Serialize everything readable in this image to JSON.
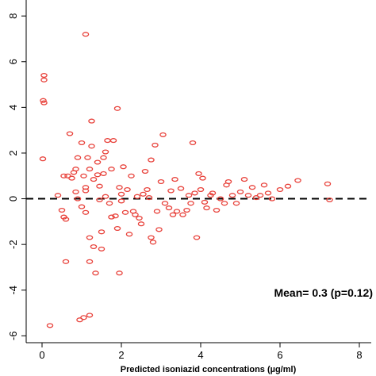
{
  "chart_data": {
    "type": "scatter",
    "title": "",
    "xlabel": "Predicted isoniazid concentrations (µg/ml)",
    "ylabel": "",
    "xlim": [
      -0.4,
      8.3
    ],
    "ylim": [
      -6.3,
      8.7
    ],
    "x_ticks": [
      0,
      2,
      4,
      6,
      8
    ],
    "x_tick_labels": [
      "0",
      "2",
      "4",
      "6",
      "8"
    ],
    "y_ticks": [
      -6,
      -4,
      -2,
      0,
      2,
      4,
      6,
      8
    ],
    "y_tick_labels": [
      "-6",
      "-4",
      "-2",
      "0",
      "2",
      "4",
      "6",
      "8"
    ],
    "grid": false,
    "reference_line": {
      "y": 0,
      "style": "dashed"
    },
    "annotation": "Mean= 0.3 (p=0.12)",
    "marker_color": "#e8413a",
    "series": [
      {
        "points": [
          [
            0.05,
            5.4
          ],
          [
            0.05,
            5.2
          ],
          [
            0.03,
            4.3
          ],
          [
            0.05,
            4.2
          ],
          [
            0.02,
            1.75
          ],
          [
            0.2,
            -5.55
          ],
          [
            0.4,
            0.15
          ],
          [
            0.5,
            -0.5
          ],
          [
            0.55,
            -0.8
          ],
          [
            0.6,
            -0.9
          ],
          [
            0.6,
            -2.75
          ],
          [
            0.55,
            1.0
          ],
          [
            0.65,
            1.0
          ],
          [
            0.7,
            2.85
          ],
          [
            0.75,
            0.9
          ],
          [
            0.8,
            1.15
          ],
          [
            0.85,
            1.3
          ],
          [
            0.85,
            0.3
          ],
          [
            0.9,
            1.8
          ],
          [
            0.9,
            0.0
          ],
          [
            0.95,
            -5.3
          ],
          [
            1.05,
            -5.2
          ],
          [
            1.0,
            -0.35
          ],
          [
            1.0,
            2.45
          ],
          [
            1.05,
            1.0
          ],
          [
            1.1,
            7.2
          ],
          [
            1.1,
            0.5
          ],
          [
            1.1,
            0.35
          ],
          [
            1.1,
            -0.6
          ],
          [
            1.15,
            1.8
          ],
          [
            1.2,
            1.3
          ],
          [
            1.2,
            -1.7
          ],
          [
            1.2,
            -2.75
          ],
          [
            1.2,
            -5.1
          ],
          [
            1.25,
            3.4
          ],
          [
            1.25,
            2.3
          ],
          [
            1.3,
            0.85
          ],
          [
            1.3,
            -2.1
          ],
          [
            1.35,
            -3.25
          ],
          [
            1.4,
            1.6
          ],
          [
            1.4,
            1.05
          ],
          [
            1.45,
            0.55
          ],
          [
            1.45,
            -0.05
          ],
          [
            1.5,
            -1.45
          ],
          [
            1.5,
            -2.2
          ],
          [
            1.55,
            1.8
          ],
          [
            1.55,
            1.1
          ],
          [
            1.6,
            2.05
          ],
          [
            1.6,
            0.1
          ],
          [
            1.65,
            2.55
          ],
          [
            1.7,
            -0.2
          ],
          [
            1.75,
            1.3
          ],
          [
            1.75,
            -0.8
          ],
          [
            1.8,
            2.55
          ],
          [
            1.85,
            -0.75
          ],
          [
            1.9,
            3.95
          ],
          [
            1.9,
            -1.3
          ],
          [
            1.95,
            0.5
          ],
          [
            1.95,
            -3.25
          ],
          [
            2.0,
            0.2
          ],
          [
            2.0,
            -0.1
          ],
          [
            2.05,
            1.4
          ],
          [
            2.1,
            -0.6
          ],
          [
            2.15,
            0.4
          ],
          [
            2.2,
            -1.55
          ],
          [
            2.25,
            1.0
          ],
          [
            2.3,
            -0.55
          ],
          [
            2.35,
            -0.7
          ],
          [
            2.4,
            0.1
          ],
          [
            2.45,
            -0.85
          ],
          [
            2.5,
            -1.1
          ],
          [
            2.55,
            0.2
          ],
          [
            2.6,
            1.2
          ],
          [
            2.65,
            0.4
          ],
          [
            2.7,
            0.05
          ],
          [
            2.75,
            1.7
          ],
          [
            2.75,
            -1.7
          ],
          [
            2.8,
            -1.9
          ],
          [
            2.85,
            2.35
          ],
          [
            2.9,
            -0.55
          ],
          [
            2.95,
            -1.35
          ],
          [
            3.0,
            0.75
          ],
          [
            3.05,
            2.8
          ],
          [
            3.1,
            -0.2
          ],
          [
            3.2,
            -0.4
          ],
          [
            3.25,
            0.35
          ],
          [
            3.3,
            -0.7
          ],
          [
            3.35,
            0.85
          ],
          [
            3.4,
            -0.55
          ],
          [
            3.5,
            0.45
          ],
          [
            3.55,
            -0.7
          ],
          [
            3.65,
            -0.5
          ],
          [
            3.7,
            0.15
          ],
          [
            3.75,
            -0.2
          ],
          [
            3.8,
            2.45
          ],
          [
            3.85,
            0.25
          ],
          [
            3.9,
            -1.7
          ],
          [
            3.95,
            1.1
          ],
          [
            4.0,
            0.4
          ],
          [
            4.05,
            0.9
          ],
          [
            4.1,
            -0.15
          ],
          [
            4.15,
            -0.4
          ],
          [
            4.25,
            0.15
          ],
          [
            4.3,
            0.25
          ],
          [
            4.4,
            -0.5
          ],
          [
            4.5,
            0.0
          ],
          [
            4.6,
            -0.2
          ],
          [
            4.65,
            0.6
          ],
          [
            4.7,
            0.75
          ],
          [
            4.8,
            0.15
          ],
          [
            4.9,
            -0.2
          ],
          [
            5.0,
            0.3
          ],
          [
            5.1,
            0.85
          ],
          [
            5.2,
            0.15
          ],
          [
            5.3,
            0.5
          ],
          [
            5.4,
            0.05
          ],
          [
            5.5,
            0.15
          ],
          [
            5.6,
            0.6
          ],
          [
            5.7,
            0.25
          ],
          [
            5.8,
            0.0
          ],
          [
            6.0,
            0.4
          ],
          [
            6.2,
            0.55
          ],
          [
            6.45,
            0.8
          ],
          [
            7.2,
            0.65
          ],
          [
            7.25,
            -0.05
          ]
        ]
      }
    ]
  }
}
